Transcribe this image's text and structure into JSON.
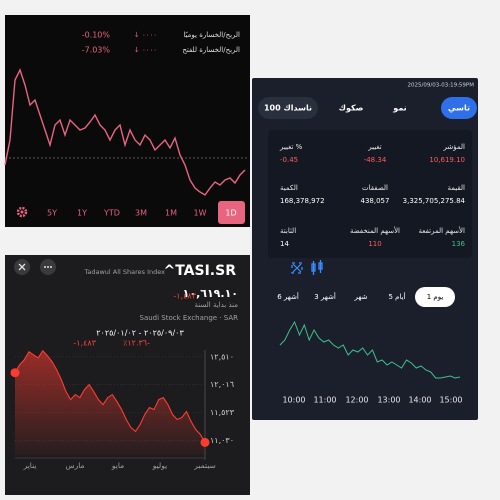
{
  "profit_panel": {
    "rows": [
      {
        "label": "الربح/الخسارة يوميًا",
        "amount": "↓ ٠٠٠٠",
        "percent": "-0.10%"
      },
      {
        "label": "الربح/الخسارة للفتح",
        "amount": "↓ ٠٠٠٠",
        "percent": "-7.03%"
      }
    ],
    "line": {
      "color": "#e8647f",
      "values": [
        35,
        60,
        120,
        130,
        115,
        95,
        100,
        85,
        70,
        55,
        75,
        80,
        65,
        80,
        75,
        70,
        72,
        78,
        85,
        75,
        70,
        60,
        70,
        75,
        55,
        70,
        60,
        55,
        65,
        60,
        50,
        55,
        60,
        52,
        62,
        45,
        35,
        20,
        12,
        8,
        5,
        12,
        18,
        15,
        20,
        22,
        17,
        25,
        30
      ]
    },
    "ranges": [
      "5Y",
      "1Y",
      "YTD",
      "3M",
      "1M",
      "1W",
      "1D"
    ],
    "active_range": 6
  },
  "index_panel": {
    "timestamp": "2025/09/03-03:19:59PM",
    "tabs": [
      "تاسي",
      "نمو",
      "صكوك",
      "ناسداك 100"
    ],
    "active_tab": 0,
    "stats": [
      [
        {
          "label": "المؤشر",
          "value": "10,619.10",
          "color": "#ff5a5f"
        },
        {
          "label": "تغيير",
          "value": "-48.34",
          "color": "#ff5a5f"
        },
        {
          "label": "تغيير %",
          "value": "-0.45",
          "color": "#ff5a5f"
        }
      ],
      [
        {
          "label": "القيمة",
          "value": "3,325,705,275.84",
          "color": "#ffffff"
        },
        {
          "label": "الصفقات",
          "value": "438,057",
          "color": "#ffffff"
        },
        {
          "label": "الكمية",
          "value": "168,378,972",
          "color": "#ffffff"
        }
      ],
      [
        {
          "label": "الأسهم المرتفعة",
          "value": "136",
          "color": "#3cc08c"
        },
        {
          "label": "الأسهم المنخفضة",
          "value": "110",
          "color": "#ff5a5f"
        },
        {
          "label": "الثابتة",
          "value": "14",
          "color": "#ffffff"
        }
      ]
    ],
    "periods": [
      "1 يوم",
      "5 أيام",
      "شهر",
      "3 أشهر",
      "6 أشهر"
    ],
    "active_period": 0,
    "chart": {
      "type": "line",
      "color": "#3cc08c",
      "x_labels": [
        "10:00",
        "11:00",
        "12:00",
        "13:00",
        "14:00",
        "15:00"
      ],
      "values": [
        10655,
        10660,
        10670,
        10678,
        10665,
        10675,
        10660,
        10670,
        10662,
        10658,
        10660,
        10655,
        10652,
        10655,
        10645,
        10650,
        10648,
        10652,
        10645,
        10650,
        10638,
        10640,
        10635,
        10638,
        10635,
        10632,
        10640,
        10637,
        10632,
        10634,
        10630,
        10628,
        10622,
        10622,
        10623,
        10624,
        10622,
        10623
      ]
    }
  },
  "tasi_panel": {
    "symbol": "^TASI.SR",
    "name": "Tadawul All Shares Index",
    "price": "١٠,٦١٩.١٠",
    "ytd_change": "-١,٤٨٣",
    "ytd_label": "منذ بداية السنة",
    "exchange": "Saudi Stock Exchange · SAR",
    "date_range": "٢٠٢٥/٠٩/٠٣ - ٢٠٢٥/٠١/٠٢",
    "range_change": "-١,٤٨٣",
    "range_percent": "٪١٢.٣٦-",
    "chart": {
      "type": "area",
      "color": "#ff3b30",
      "categories": [
        "يناير",
        "مارس",
        "مايو",
        "يوليو",
        "سبتمبر"
      ],
      "values": [
        12228,
        12369,
        12457,
        12598,
        12545,
        12492,
        12616,
        12528,
        12422,
        12281,
        12104,
        11893,
        11751,
        11840,
        11787,
        11928,
        12016,
        11893,
        11751,
        11663,
        11787,
        11840,
        11716,
        11575,
        11399,
        11258,
        11187,
        11310,
        11487,
        11610,
        11575,
        11751,
        11787,
        11663,
        11487,
        11399,
        11434,
        11540,
        11363,
        11222,
        11134,
        10993
      ],
      "ylim": [
        10770,
        12630
      ],
      "yticks": [
        {
          "value": 12510,
          "label": "١٢,٥١٠"
        },
        {
          "value": 12016,
          "label": "١٢,٠١٦"
        },
        {
          "value": 11523,
          "label": "١١,٥٢٣"
        },
        {
          "value": 11030,
          "label": "١١,٠٣٠"
        }
      ],
      "grid": true
    }
  }
}
